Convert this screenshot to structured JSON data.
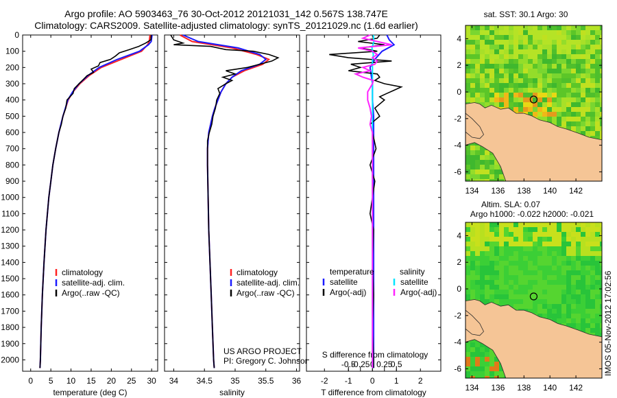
{
  "titles": {
    "line1": "Argo profile: AO 5903463_76 30-Oct-2012 20121031_142 0.567S 138.747E",
    "line2": "Climatology: CARS2009. Satellite-adjusted climatology: synTS_20121029.nc (1.6d earlier)"
  },
  "stamp": "IMOS 05-Nov-2012 17:02:56",
  "colors": {
    "climatology": "#ff2020",
    "satellite": "#1a1aff",
    "argo": "#000000",
    "sat_sal": "#00e5ff",
    "argo_sal": "#ff22ff",
    "land": "#f5c596"
  },
  "depth_ticks": [
    0,
    100,
    200,
    300,
    400,
    500,
    600,
    700,
    800,
    900,
    1000,
    1100,
    1200,
    1300,
    1400,
    1500,
    1600,
    1700,
    1800,
    1900,
    2000
  ],
  "chart_data": [
    {
      "type": "line",
      "xlabel": "temperature (deg C)",
      "xticks": [
        0,
        5,
        10,
        15,
        20,
        25,
        30
      ],
      "xlim": [
        -2,
        31.5
      ],
      "ylim": [
        2070,
        0
      ],
      "legend": [
        "climatology",
        "satellite-adj. clim.",
        "Argo(..raw -QC)"
      ],
      "series": [
        {
          "name": "climatology",
          "depth": [
            0,
            40,
            60,
            100,
            150,
            200,
            250,
            300,
            350,
            400,
            500,
            600,
            700,
            800,
            900,
            1000,
            1200,
            1400,
            1600,
            1800,
            2000,
            2050
          ],
          "values": [
            29.6,
            29.4,
            29.0,
            27.5,
            22.5,
            17.5,
            14.5,
            12.2,
            10.5,
            9.3,
            8.0,
            7.0,
            6.2,
            5.5,
            5.0,
            4.5,
            3.8,
            3.3,
            2.9,
            2.6,
            2.4,
            2.3
          ]
        },
        {
          "name": "satellite-adj. clim.",
          "depth": [
            0,
            40,
            60,
            100,
            150,
            200,
            250,
            300,
            350,
            400,
            500,
            600,
            700,
            800,
            900,
            1000,
            1200,
            1400,
            1600,
            1800,
            2000,
            2050
          ],
          "values": [
            30.1,
            29.9,
            29.2,
            27.0,
            21.5,
            17.0,
            14.2,
            12.0,
            10.4,
            9.2,
            8.0,
            7.0,
            6.2,
            5.5,
            5.0,
            4.5,
            3.8,
            3.3,
            2.9,
            2.6,
            2.4,
            2.3
          ]
        },
        {
          "name": "Argo(..raw -QC)",
          "depth": [
            0,
            30,
            50,
            70,
            90,
            110,
            130,
            150,
            170,
            190,
            210,
            230,
            250,
            270,
            300,
            330,
            360,
            400,
            450,
            500,
            550,
            600,
            700,
            800,
            900,
            1000,
            1200,
            1400,
            1600,
            1800,
            2000,
            2050
          ],
          "values": [
            29.9,
            29.8,
            28.5,
            26.8,
            24.5,
            22.0,
            21.0,
            19.8,
            17.2,
            16.8,
            15.0,
            15.6,
            14.0,
            13.2,
            12.0,
            10.8,
            10.5,
            9.0,
            8.7,
            8.0,
            7.6,
            7.0,
            6.2,
            5.5,
            5.0,
            4.5,
            3.8,
            3.3,
            2.9,
            2.6,
            2.4,
            2.3
          ]
        }
      ]
    },
    {
      "type": "line",
      "xlabel": "salinity",
      "xticks": [
        34,
        34.5,
        35,
        35.5,
        36
      ],
      "xlim": [
        33.85,
        36.05
      ],
      "ylim": [
        2070,
        0
      ],
      "legend": [
        "climatology",
        "satellite-adj. clim.",
        "Argo(..raw -QC)"
      ],
      "annotation": [
        "US ARGO PROJECT",
        "PI: Gregory C. Johnson"
      ],
      "series": [
        {
          "name": "climatology",
          "depth": [
            0,
            40,
            80,
            120,
            150,
            180,
            220,
            260,
            300,
            350,
            400,
            450,
            500,
            550,
            600,
            700,
            800,
            1000,
            1200,
            1400,
            1600,
            1800,
            2000,
            2050
          ],
          "values": [
            34.1,
            34.3,
            34.95,
            35.35,
            35.55,
            35.45,
            35.15,
            34.95,
            34.85,
            34.77,
            34.72,
            34.67,
            34.63,
            34.6,
            34.57,
            34.55,
            34.55,
            34.56,
            34.57,
            34.59,
            34.61,
            34.63,
            34.65,
            34.66
          ]
        },
        {
          "name": "satellite-adj. clim.",
          "depth": [
            0,
            40,
            80,
            120,
            150,
            180,
            220,
            260,
            300,
            350,
            400,
            450,
            500,
            550,
            600,
            700,
            800,
            1000,
            1200,
            1400,
            1600,
            1800,
            2000,
            2050
          ],
          "values": [
            34.15,
            34.4,
            35.05,
            35.4,
            35.5,
            35.4,
            35.1,
            34.95,
            34.85,
            34.77,
            34.72,
            34.67,
            34.63,
            34.6,
            34.57,
            34.55,
            34.55,
            34.56,
            34.57,
            34.59,
            34.61,
            34.63,
            34.65,
            34.66
          ]
        },
        {
          "name": "Argo(..raw -QC)",
          "depth": [
            0,
            30,
            50,
            60,
            70,
            90,
            100,
            120,
            140,
            160,
            180,
            200,
            220,
            240,
            260,
            280,
            300,
            330,
            360,
            400,
            450,
            500,
            550,
            600,
            650,
            700,
            800,
            1000,
            1200,
            1400,
            1600,
            1800,
            2000,
            2050
          ],
          "values": [
            33.95,
            34.0,
            34.15,
            34.0,
            34.6,
            34.85,
            35.3,
            35.55,
            35.7,
            35.6,
            35.4,
            35.2,
            34.85,
            35.0,
            34.8,
            34.95,
            34.85,
            34.72,
            34.75,
            34.7,
            34.68,
            34.64,
            34.62,
            34.58,
            34.55,
            34.55,
            34.55,
            34.56,
            34.57,
            34.59,
            34.61,
            34.63,
            34.65,
            34.66
          ]
        }
      ]
    },
    {
      "type": "line",
      "xlabel": "T difference from climatology",
      "xticks": [
        -2,
        -1,
        0,
        1,
        2
      ],
      "xlim": [
        -2.75,
        2.85
      ],
      "x2label": "S difference from climatology",
      "x2ticks": [
        -0.5,
        -0.25,
        0,
        0.25,
        0.5
      ],
      "ylim": [
        2070,
        0
      ],
      "legend_headers": [
        "temperature",
        "salinity"
      ],
      "legend": [
        "satellite",
        "Argo(-adj)",
        "satellite",
        "Argo(-adj)"
      ],
      "series": [
        {
          "name": "satellite",
          "group": "temperature",
          "depth": [
            0,
            30,
            60,
            100,
            150,
            200,
            300,
            400,
            500,
            600,
            800,
            1000,
            1500,
            2000,
            2050
          ],
          "values": [
            0.6,
            0.7,
            0.9,
            0.4,
            0.1,
            -0.1,
            0.0,
            0.0,
            0.05,
            0.05,
            0.05,
            0.05,
            0.05,
            0.05,
            0.05
          ]
        },
        {
          "name": "Argo(-adj)",
          "group": "temperature",
          "depth": [
            0,
            20,
            40,
            60,
            80,
            100,
            120,
            140,
            160,
            180,
            200,
            220,
            240,
            260,
            280,
            300,
            320,
            340,
            360,
            380,
            400,
            450,
            500,
            550,
            600,
            700,
            800,
            900,
            1000,
            1100,
            1200,
            1400,
            1600,
            1800,
            2000,
            2050
          ],
          "values": [
            0.3,
            0.2,
            -0.6,
            0.5,
            -0.5,
            0.2,
            -1.8,
            -1.0,
            0.8,
            -0.9,
            -0.5,
            -1.0,
            0.2,
            0.3,
            0.1,
            0.5,
            1.2,
            0.9,
            0.6,
            0.3,
            0.5,
            0.1,
            0.3,
            -0.1,
            0.0,
            0.15,
            -0.1,
            0.1,
            0.0,
            -0.1,
            0.05,
            0.0,
            0.05,
            0.0,
            0.05,
            0.05
          ]
        },
        {
          "name": "satellite",
          "group": "salinity",
          "depth": [
            0,
            40,
            80,
            120,
            160,
            200,
            250,
            300,
            400,
            500,
            700,
            1000,
            1500,
            2000,
            2050
          ],
          "values": [
            0.02,
            0.03,
            -0.01,
            0.02,
            0.0,
            0.0,
            0.0,
            0.0,
            0.0,
            0.0,
            0.0,
            0.0,
            0.0,
            0.0,
            0.0
          ]
        },
        {
          "name": "Argo(-adj)",
          "group": "salinity",
          "depth": [
            0,
            20,
            40,
            60,
            80,
            100,
            120,
            140,
            160,
            180,
            200,
            220,
            240,
            260,
            280,
            300,
            350,
            400,
            450,
            500,
            550,
            600,
            700,
            800,
            1000,
            1500,
            2000,
            2050
          ],
          "values": [
            -0.05,
            -0.2,
            0.1,
            0.4,
            -0.3,
            0.0,
            0.1,
            0.0,
            0.1,
            0.05,
            -0.2,
            -0.05,
            -0.35,
            -0.2,
            0.02,
            0.0,
            -0.1,
            -0.1,
            -0.05,
            -0.02,
            -0.05,
            0.0,
            0.0,
            0.0,
            0.0,
            0.0,
            0.0,
            0.0
          ]
        }
      ]
    },
    {
      "type": "heatmap",
      "title": "sat. SST: 30.1 Argo: 30",
      "xticks": [
        134,
        136,
        138,
        140,
        142
      ],
      "yticks": [
        4,
        2,
        0,
        -2,
        -4,
        -6
      ],
      "xlim": [
        133.5,
        144
      ],
      "ylim": [
        -6.7,
        5
      ],
      "marker": {
        "lon": 138.747,
        "lat": -0.567
      }
    },
    {
      "type": "heatmap",
      "title": "Altim. SLA: 0.07",
      "subtitle": "Argo h1000: -0.022 h2000: -0.021",
      "xticks": [
        134,
        136,
        138,
        140,
        142
      ],
      "yticks": [
        4,
        2,
        0,
        -2,
        -4,
        -6
      ],
      "xlim": [
        133.5,
        144
      ],
      "ylim": [
        -6.7,
        5
      ],
      "marker": {
        "lon": 138.747,
        "lat": -0.567
      }
    }
  ]
}
